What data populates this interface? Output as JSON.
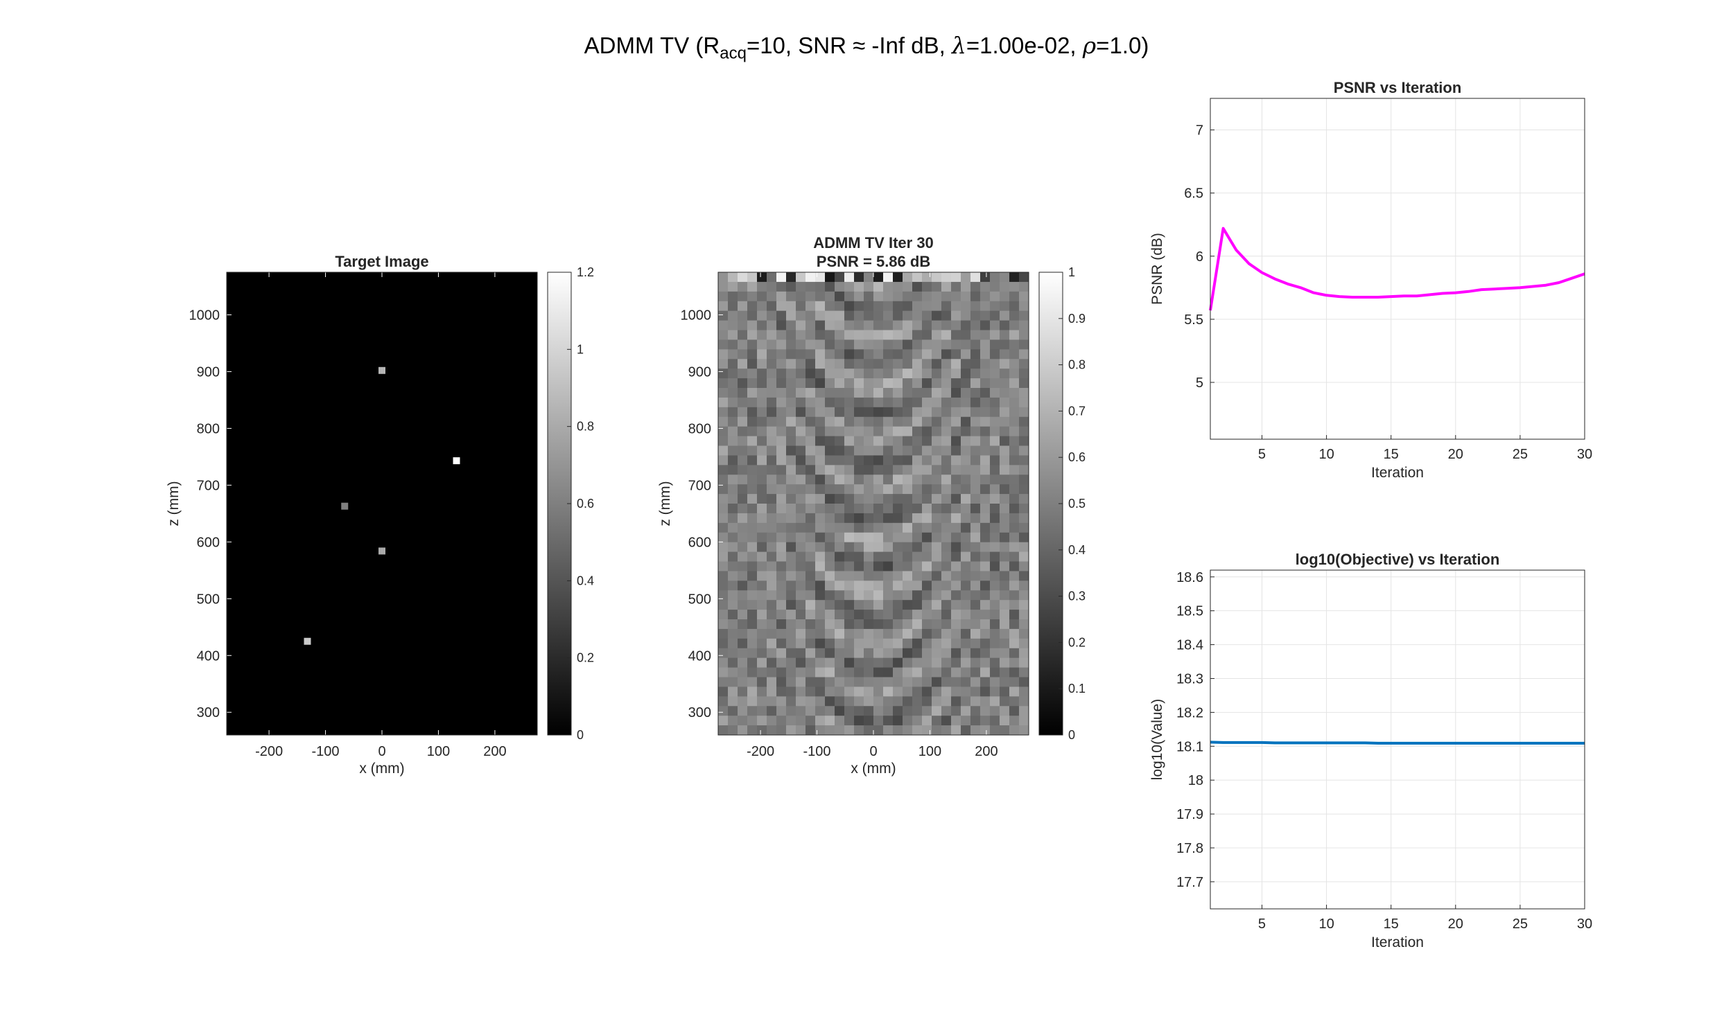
{
  "figure": {
    "title_prefix": "ADMM TV (R",
    "title_sub": "acq",
    "title_mid": "=10, SNR ",
    "title_approx": "≈",
    "title_snr": " -Inf dB, ",
    "title_lambda_sym": "λ",
    "title_lambda_val": "=1.00e-02, ",
    "title_rho_sym": "ρ",
    "title_rho_val": "=1.0)"
  },
  "chart_data": [
    {
      "type": "heatmap",
      "title": "Target Image",
      "xlabel": "x (mm)",
      "ylabel": "z (mm)",
      "xlim": [
        -275,
        275
      ],
      "ylim": [
        260,
        1075
      ],
      "xticks": [
        -200,
        -100,
        0,
        100,
        200
      ],
      "yticks": [
        300,
        400,
        500,
        600,
        700,
        800,
        900,
        1000
      ],
      "background_value": 0,
      "colormap": "gray",
      "colorbar": {
        "limits": [
          0,
          1.2
        ],
        "ticks": [
          0,
          0.2,
          0.4,
          0.6,
          0.8,
          1,
          1.2
        ]
      },
      "points": [
        {
          "x": 0,
          "z": 902,
          "value": 0.85
        },
        {
          "x": 132,
          "z": 743,
          "value": 1.2
        },
        {
          "x": -66,
          "z": 663,
          "value": 0.6
        },
        {
          "x": 0,
          "z": 584,
          "value": 0.8
        },
        {
          "x": -132,
          "z": 425,
          "value": 0.95
        }
      ]
    },
    {
      "type": "heatmap",
      "title": "ADMM TV Iter 30",
      "subtitle": "PSNR = 5.86 dB",
      "xlabel": "x (mm)",
      "ylabel": "z (mm)",
      "xlim": [
        -275,
        275
      ],
      "ylim": [
        260,
        1075
      ],
      "xticks": [
        -200,
        -100,
        0,
        100,
        200
      ],
      "yticks": [
        300,
        400,
        500,
        600,
        700,
        800,
        900,
        1000
      ],
      "colormap": "gray",
      "colorbar": {
        "limits": [
          0,
          1
        ],
        "ticks": [
          0,
          0.1,
          0.2,
          0.3,
          0.4,
          0.5,
          0.6,
          0.7,
          0.8,
          0.9,
          1
        ]
      },
      "grid_size": [
        32,
        48
      ],
      "texture_seed": 7
    },
    {
      "type": "line",
      "title": "PSNR vs Iteration",
      "xlabel": "Iteration",
      "ylabel": "PSNR (dB)",
      "xlim": [
        1,
        30
      ],
      "ylim": [
        4.55,
        7.25
      ],
      "xticks": [
        5,
        10,
        15,
        20,
        25,
        30
      ],
      "yticks": [
        5,
        5.5,
        6,
        6.5,
        7
      ],
      "grid": true,
      "color": "#ff00ff",
      "series": [
        {
          "x": [
            1,
            2,
            3,
            4,
            5,
            6,
            7,
            8,
            9,
            10,
            11,
            12,
            13,
            14,
            15,
            16,
            17,
            18,
            19,
            20,
            21,
            22,
            23,
            24,
            25,
            26,
            27,
            28,
            29,
            30
          ],
          "values": [
            5.57,
            6.22,
            6.05,
            5.94,
            5.87,
            5.82,
            5.78,
            5.75,
            5.71,
            5.69,
            5.68,
            5.675,
            5.675,
            5.675,
            5.68,
            5.685,
            5.685,
            5.695,
            5.705,
            5.71,
            5.72,
            5.735,
            5.74,
            5.745,
            5.75,
            5.76,
            5.77,
            5.79,
            5.825,
            5.86
          ]
        }
      ]
    },
    {
      "type": "line",
      "title": "log10(Objective) vs Iteration",
      "xlabel": "Iteration",
      "ylabel": "log10(Value)",
      "xlim": [
        1,
        30
      ],
      "ylim": [
        17.62,
        18.62
      ],
      "xticks": [
        5,
        10,
        15,
        20,
        25,
        30
      ],
      "yticks": [
        17.7,
        17.8,
        17.9,
        18,
        18.1,
        18.2,
        18.3,
        18.4,
        18.5,
        18.6
      ],
      "grid": true,
      "color": "#0072bd",
      "series": [
        {
          "x": [
            1,
            2,
            3,
            4,
            5,
            6,
            7,
            8,
            9,
            10,
            11,
            12,
            13,
            14,
            15,
            16,
            17,
            18,
            19,
            20,
            21,
            22,
            23,
            24,
            25,
            26,
            27,
            28,
            29,
            30
          ],
          "values": [
            18.112,
            18.111,
            18.111,
            18.111,
            18.111,
            18.11,
            18.11,
            18.11,
            18.11,
            18.11,
            18.11,
            18.11,
            18.11,
            18.109,
            18.109,
            18.109,
            18.109,
            18.109,
            18.109,
            18.109,
            18.109,
            18.109,
            18.109,
            18.109,
            18.109,
            18.109,
            18.109,
            18.109,
            18.109,
            18.109
          ]
        }
      ]
    }
  ]
}
